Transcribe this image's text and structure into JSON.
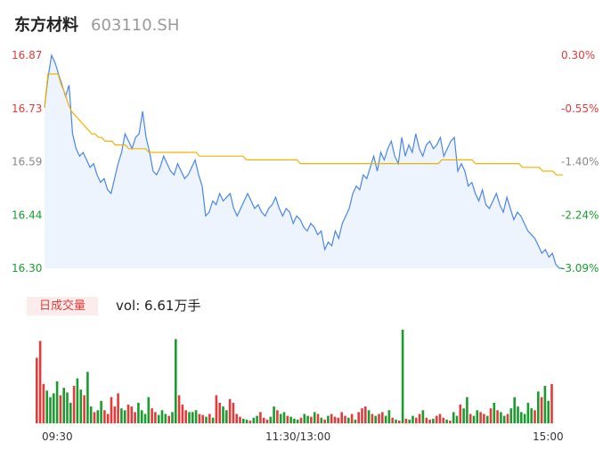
{
  "header": {
    "name": "东方材料",
    "code": "603110.SH"
  },
  "volume_panel": {
    "tag": "日成交量",
    "vol_text": "vol: 6.61万手"
  },
  "colors": {
    "price_line": "#4a86e8",
    "avg_line": "#f0b400",
    "up": "#e23b3b",
    "down": "#1a9c2e",
    "fill": "#eef4fd"
  },
  "chart_data": [
    {
      "type": "line",
      "title": "",
      "ylim": [
        16.3,
        16.87
      ],
      "y_ticks": [
        "16.87",
        "16.73",
        "16.59",
        "16.44",
        "16.30"
      ],
      "y2_ticks": [
        "0.30%",
        "-0.55%",
        "-1.40%",
        "-2.24%",
        "-3.09%"
      ],
      "x_ticks": [
        "09:30",
        "11:30/13:00",
        "15:00"
      ],
      "series": [
        {
          "name": "",
          "values": [
            16.73,
            16.81,
            16.87,
            16.85,
            16.82,
            16.79,
            16.76,
            16.79,
            16.66,
            16.62,
            16.6,
            16.61,
            16.59,
            16.57,
            16.58,
            16.55,
            16.53,
            16.54,
            16.51,
            16.5,
            16.54,
            16.58,
            16.61,
            16.66,
            16.64,
            16.62,
            16.65,
            16.66,
            16.72,
            16.65,
            16.61,
            16.56,
            16.55,
            16.57,
            16.6,
            16.58,
            16.56,
            16.55,
            16.58,
            16.56,
            16.54,
            16.55,
            16.57,
            16.59,
            16.55,
            16.52,
            16.44,
            16.45,
            16.48,
            16.47,
            16.5,
            16.48,
            16.49,
            16.5,
            16.46,
            16.44,
            16.46,
            16.48,
            16.5,
            16.48,
            16.46,
            16.47,
            16.45,
            16.44,
            16.46,
            16.47,
            16.49,
            16.46,
            16.44,
            16.46,
            16.45,
            16.42,
            16.44,
            16.43,
            16.41,
            16.4,
            16.42,
            16.41,
            16.39,
            16.4,
            16.35,
            16.37,
            16.36,
            16.4,
            16.38,
            16.42,
            16.44,
            16.46,
            16.5,
            16.52,
            16.51,
            16.55,
            16.54,
            16.57,
            16.6,
            16.56,
            16.61,
            16.59,
            16.62,
            16.64,
            16.6,
            16.58,
            16.65,
            16.6,
            16.63,
            16.61,
            16.66,
            16.62,
            16.6,
            16.63,
            16.64,
            16.62,
            16.63,
            16.65,
            16.6,
            16.62,
            16.64,
            16.65,
            16.56,
            16.58,
            16.56,
            16.52,
            16.53,
            16.5,
            16.48,
            16.51,
            16.47,
            16.46,
            16.48,
            16.5,
            16.47,
            16.45,
            16.49,
            16.46,
            16.43,
            16.45,
            16.44,
            16.42,
            16.4,
            16.39,
            16.38,
            16.36,
            16.34,
            16.35,
            16.33,
            16.34,
            16.31,
            16.3,
            16.3
          ]
        },
        {
          "name": "",
          "values": [
            16.73,
            16.82,
            16.82,
            16.82,
            16.82,
            16.79,
            16.77,
            16.74,
            16.72,
            16.71,
            16.7,
            16.69,
            16.68,
            16.67,
            16.66,
            16.66,
            16.65,
            16.65,
            16.64,
            16.64,
            16.64,
            16.63,
            16.63,
            16.63,
            16.63,
            16.62,
            16.62,
            16.62,
            16.62,
            16.62,
            16.62,
            16.61,
            16.61,
            16.61,
            16.61,
            16.61,
            16.61,
            16.61,
            16.61,
            16.61,
            16.61,
            16.61,
            16.61,
            16.61,
            16.61,
            16.61,
            16.6,
            16.6,
            16.6,
            16.6,
            16.6,
            16.6,
            16.6,
            16.6,
            16.6,
            16.6,
            16.6,
            16.6,
            16.6,
            16.6,
            16.59,
            16.59,
            16.59,
            16.59,
            16.59,
            16.59,
            16.59,
            16.59,
            16.59,
            16.59,
            16.59,
            16.59,
            16.59,
            16.59,
            16.59,
            16.59,
            16.58,
            16.58,
            16.58,
            16.58,
            16.58,
            16.58,
            16.58,
            16.58,
            16.58,
            16.58,
            16.58,
            16.58,
            16.58,
            16.58,
            16.58,
            16.58,
            16.58,
            16.58,
            16.58,
            16.58,
            16.58,
            16.58,
            16.58,
            16.58,
            16.58,
            16.58,
            16.58,
            16.58,
            16.58,
            16.58,
            16.58,
            16.58,
            16.58,
            16.58,
            16.58,
            16.58,
            16.58,
            16.58,
            16.58,
            16.58,
            16.58,
            16.58,
            16.59,
            16.59,
            16.59,
            16.59,
            16.59,
            16.59,
            16.59,
            16.59,
            16.59,
            16.59,
            16.58,
            16.58,
            16.58,
            16.58,
            16.58,
            16.58,
            16.58,
            16.58,
            16.58,
            16.58,
            16.58,
            16.58,
            16.58,
            16.58,
            16.57,
            16.57,
            16.57,
            16.57,
            16.57,
            16.57,
            16.56,
            16.56,
            16.56,
            16.56,
            16.55,
            16.55,
            16.55
          ]
        }
      ]
    },
    {
      "type": "bar",
      "title": "",
      "ylim": [
        0,
        100
      ],
      "values": [
        70,
        88,
        42,
        35,
        28,
        32,
        45,
        30,
        38,
        33,
        22,
        40,
        48,
        36,
        30,
        55,
        18,
        12,
        14,
        24,
        14,
        10,
        28,
        18,
        32,
        16,
        14,
        20,
        18,
        12,
        22,
        14,
        10,
        28,
        16,
        12,
        9,
        14,
        10,
        8,
        12,
        90,
        30,
        20,
        14,
        12,
        12,
        14,
        10,
        9,
        7,
        10,
        6,
        30,
        22,
        18,
        14,
        26,
        22,
        10,
        7,
        5,
        4,
        3,
        6,
        8,
        12,
        6,
        4,
        7,
        18,
        14,
        10,
        12,
        8,
        7,
        5,
        4,
        6,
        10,
        8,
        7,
        12,
        10,
        6,
        4,
        8,
        10,
        7,
        6,
        12,
        8,
        6,
        10,
        4,
        12,
        16,
        18,
        14,
        10,
        8,
        10,
        12,
        8,
        14,
        6,
        4,
        3,
        100,
        5,
        4,
        8,
        6,
        10,
        14,
        6,
        4,
        5,
        8,
        10,
        6,
        4,
        3,
        12,
        8,
        20,
        16,
        28,
        10,
        8,
        14,
        12,
        10,
        8,
        16,
        22,
        14,
        12,
        8,
        10,
        16,
        28,
        18,
        12,
        10,
        22,
        16,
        14,
        34,
        28,
        40,
        24,
        42
      ]
    }
  ]
}
